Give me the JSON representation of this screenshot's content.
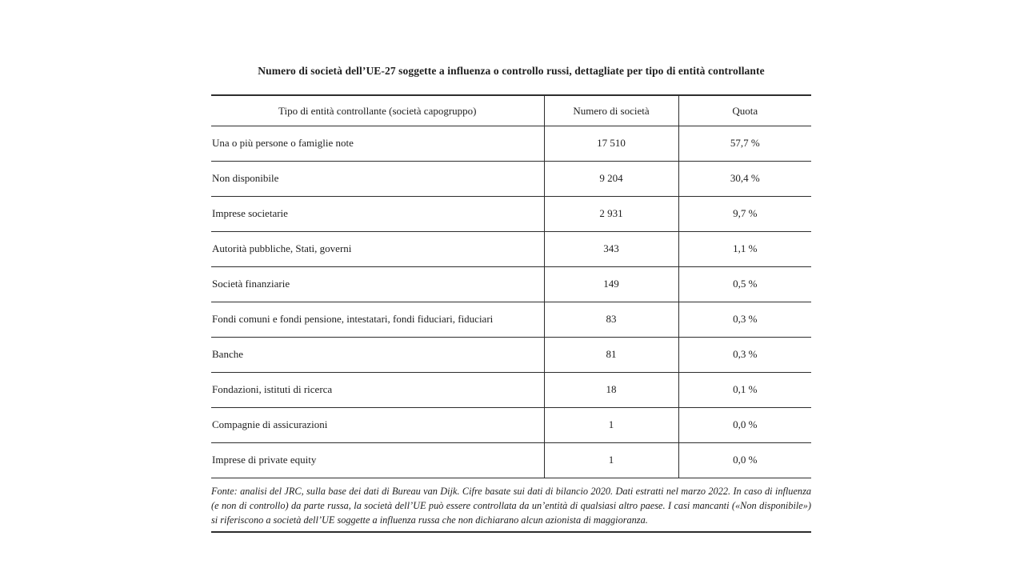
{
  "title": "Numero di società dell’UE-27 soggette a influenza o controllo russi, dettagliate per tipo di entità controllante",
  "table": {
    "columns": [
      "Tipo di entità controllante (società capogruppo)",
      "Numero di società",
      "Quota"
    ],
    "rows": [
      {
        "tipo": "Una o più persone o famiglie note",
        "numero": "17 510",
        "quota": "57,7 %"
      },
      {
        "tipo": "Non disponibile",
        "numero": "9 204",
        "quota": "30,4 %"
      },
      {
        "tipo": "Imprese societarie",
        "numero": "2 931",
        "quota": "9,7 %"
      },
      {
        "tipo": "Autorità pubbliche, Stati, governi",
        "numero": "343",
        "quota": "1,1 %"
      },
      {
        "tipo": "Società finanziarie",
        "numero": "149",
        "quota": "0,5 %"
      },
      {
        "tipo": "Fondi comuni e fondi pensione, intestatari, fondi fiduciari, fiduciari",
        "numero": "83",
        "quota": "0,3 %"
      },
      {
        "tipo": "Banche",
        "numero": "81",
        "quota": "0,3 %"
      },
      {
        "tipo": "Fondazioni, istituti di ricerca",
        "numero": "18",
        "quota": "0,1 %"
      },
      {
        "tipo": "Compagnie di assicurazioni",
        "numero": "1",
        "quota": "0,0 %"
      },
      {
        "tipo": "Imprese di private equity",
        "numero": "1",
        "quota": "0,0 %"
      }
    ],
    "footnote": "Fonte: analisi del JRC, sulla base dei dati di Bureau van Dijk. Cifre basate sui dati di bilancio 2020. Dati estratti nel marzo 2022. In caso di influenza (e non di controllo) da parte russa, la società dell’UE può essere controllata da un’entità di qualsiasi altro paese. I casi mancanti («Non disponibile») si riferiscono a società dell’UE soggette a influenza russa che non dichiarano alcun azionista di maggioranza."
  },
  "colors": {
    "text": "#1e1e1e",
    "border": "#2d2d2d",
    "background": "#ffffff"
  }
}
